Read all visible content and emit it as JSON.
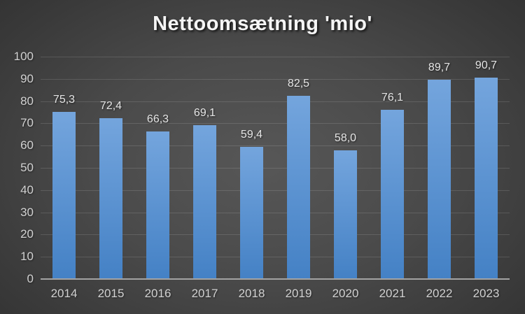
{
  "chart_data": {
    "type": "bar",
    "title": "Nettoomsætning 'mio'",
    "categories": [
      "2014",
      "2015",
      "2016",
      "2017",
      "2018",
      "2019",
      "2020",
      "2021",
      "2022",
      "2023"
    ],
    "values": [
      75.3,
      72.4,
      66.3,
      69.1,
      59.4,
      82.5,
      58.0,
      76.1,
      89.7,
      90.7
    ],
    "value_labels": [
      "75,3",
      "72,4",
      "66,3",
      "69,1",
      "59,4",
      "82,5",
      "58,0",
      "76,1",
      "89,7",
      "90,7"
    ],
    "xlabel": "",
    "ylabel": "",
    "ylim": [
      0,
      100
    ],
    "yticks": [
      0,
      10,
      20,
      30,
      40,
      50,
      60,
      70,
      80,
      90,
      100
    ],
    "grid": true,
    "legend_position": "none",
    "colors": {
      "bar_gradient_top": "#74A5DD",
      "bar_gradient_bottom": "#4481C5",
      "gridline": "rgba(255,255,255,0.13)",
      "axis_line": "#A3A3A3",
      "tick_label": "#D2D2D2",
      "data_label": "#E6E6E6",
      "title": "#F5F5F5"
    }
  }
}
